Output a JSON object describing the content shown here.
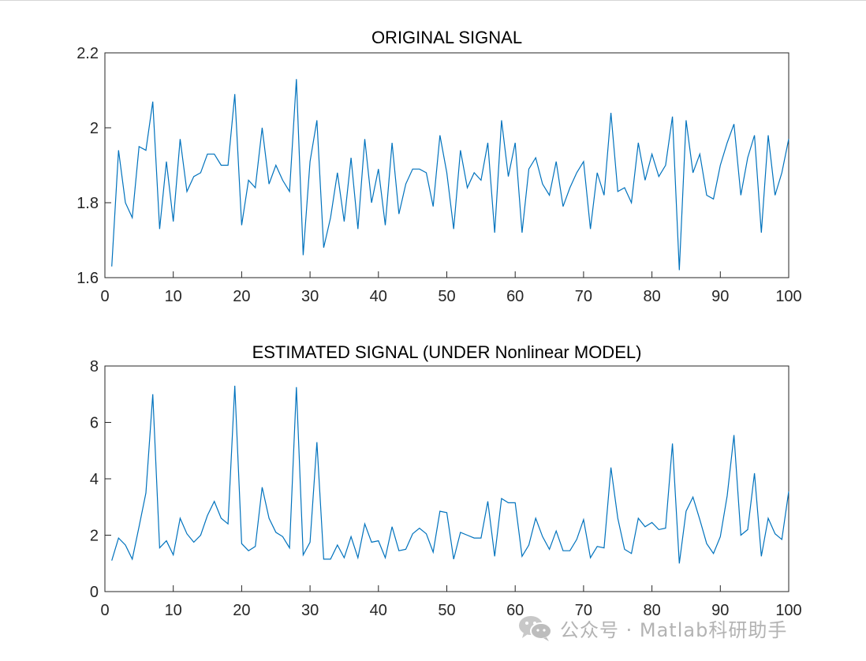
{
  "chart_data": [
    {
      "type": "line",
      "title": "ORIGINAL SIGNAL",
      "xlabel": "",
      "ylabel": "",
      "xlim": [
        0,
        100
      ],
      "ylim": [
        1.6,
        2.2
      ],
      "xticks": [
        "0",
        "10",
        "20",
        "30",
        "40",
        "50",
        "60",
        "70",
        "80",
        "90",
        "100"
      ],
      "yticks": [
        "1.6",
        "1.8",
        "2",
        "2.2"
      ],
      "grid": false,
      "series": [
        {
          "color": "#0072BD",
          "x": [
            1,
            2,
            3,
            4,
            5,
            6,
            7,
            8,
            9,
            10,
            11,
            12,
            13,
            14,
            15,
            16,
            17,
            18,
            19,
            20,
            21,
            22,
            23,
            24,
            25,
            26,
            27,
            28,
            29,
            30,
            31,
            32,
            33,
            34,
            35,
            36,
            37,
            38,
            39,
            40,
            41,
            42,
            43,
            44,
            45,
            46,
            47,
            48,
            49,
            50,
            51,
            52,
            53,
            54,
            55,
            56,
            57,
            58,
            59,
            60,
            61,
            62,
            63,
            64,
            65,
            66,
            67,
            68,
            69,
            70,
            71,
            72,
            73,
            74,
            75,
            76,
            77,
            78,
            79,
            80,
            81,
            82,
            83,
            84,
            85,
            86,
            87,
            88,
            89,
            90,
            91,
            92,
            93,
            94,
            95,
            96,
            97,
            98,
            99,
            100
          ],
          "values": [
            1.63,
            1.94,
            1.8,
            1.76,
            1.95,
            1.94,
            2.07,
            1.73,
            1.91,
            1.75,
            1.97,
            1.83,
            1.87,
            1.88,
            1.93,
            1.93,
            1.9,
            1.9,
            2.09,
            1.74,
            1.86,
            1.84,
            2.0,
            1.85,
            1.9,
            1.86,
            1.83,
            2.13,
            1.66,
            1.91,
            2.02,
            1.68,
            1.76,
            1.88,
            1.75,
            1.92,
            1.73,
            1.97,
            1.8,
            1.89,
            1.74,
            1.96,
            1.77,
            1.85,
            1.89,
            1.89,
            1.88,
            1.79,
            1.98,
            1.88,
            1.73,
            1.94,
            1.84,
            1.88,
            1.86,
            1.96,
            1.72,
            2.02,
            1.87,
            1.96,
            1.72,
            1.89,
            1.92,
            1.85,
            1.82,
            1.91,
            1.79,
            1.84,
            1.88,
            1.91,
            1.73,
            1.88,
            1.82,
            2.04,
            1.83,
            1.84,
            1.8,
            1.96,
            1.86,
            1.93,
            1.87,
            1.9,
            2.03,
            1.62,
            2.02,
            1.88,
            1.93,
            1.82,
            1.81,
            1.9,
            1.96,
            2.01,
            1.82,
            1.92,
            1.98,
            1.72,
            1.98,
            1.82,
            1.88,
            1.97
          ]
        }
      ]
    },
    {
      "type": "line",
      "title": "ESTIMATED SIGNAL (UNDER Nonlinear MODEL)",
      "xlabel": "",
      "ylabel": "",
      "xlim": [
        0,
        100
      ],
      "ylim": [
        0,
        8
      ],
      "xticks": [
        "0",
        "10",
        "20",
        "30",
        "40",
        "50",
        "60",
        "70",
        "80",
        "90",
        "100"
      ],
      "yticks": [
        "0",
        "2",
        "4",
        "6",
        "8"
      ],
      "grid": false,
      "series": [
        {
          "color": "#0072BD",
          "x": [
            1,
            2,
            3,
            4,
            5,
            6,
            7,
            8,
            9,
            10,
            11,
            12,
            13,
            14,
            15,
            16,
            17,
            18,
            19,
            20,
            21,
            22,
            23,
            24,
            25,
            26,
            27,
            28,
            29,
            30,
            31,
            32,
            33,
            34,
            35,
            36,
            37,
            38,
            39,
            40,
            41,
            42,
            43,
            44,
            45,
            46,
            47,
            48,
            49,
            50,
            51,
            52,
            53,
            54,
            55,
            56,
            57,
            58,
            59,
            60,
            61,
            62,
            63,
            64,
            65,
            66,
            67,
            68,
            69,
            70,
            71,
            72,
            73,
            74,
            75,
            76,
            77,
            78,
            79,
            80,
            81,
            82,
            83,
            84,
            85,
            86,
            87,
            88,
            89,
            90,
            91,
            92,
            93,
            94,
            95,
            96,
            97,
            98,
            99,
            100
          ],
          "values": [
            1.1,
            1.9,
            1.65,
            1.15,
            2.3,
            3.5,
            7.0,
            1.55,
            1.8,
            1.3,
            2.6,
            2.05,
            1.75,
            2.0,
            2.7,
            3.2,
            2.6,
            2.4,
            7.3,
            1.7,
            1.45,
            1.6,
            3.7,
            2.6,
            2.1,
            1.95,
            1.55,
            7.25,
            1.3,
            1.75,
            5.3,
            1.15,
            1.15,
            1.65,
            1.2,
            1.95,
            1.2,
            2.4,
            1.75,
            1.8,
            1.2,
            2.3,
            1.45,
            1.5,
            2.05,
            2.25,
            2.05,
            1.4,
            2.85,
            2.8,
            1.15,
            2.1,
            2.0,
            1.9,
            1.9,
            3.2,
            1.25,
            3.3,
            3.15,
            3.15,
            1.25,
            1.65,
            2.6,
            1.95,
            1.5,
            2.15,
            1.45,
            1.45,
            1.85,
            2.55,
            1.2,
            1.6,
            1.55,
            4.4,
            2.6,
            1.5,
            1.35,
            2.6,
            2.3,
            2.45,
            2.2,
            2.25,
            5.25,
            1.0,
            2.85,
            3.35,
            2.55,
            1.7,
            1.35,
            1.95,
            3.4,
            5.55,
            2.0,
            2.2,
            4.2,
            1.25,
            2.6,
            2.05,
            1.85,
            3.55
          ]
        }
      ]
    }
  ],
  "watermark": {
    "icon": "wechat-icon",
    "text": "公众号 · Matlab科研助手"
  }
}
